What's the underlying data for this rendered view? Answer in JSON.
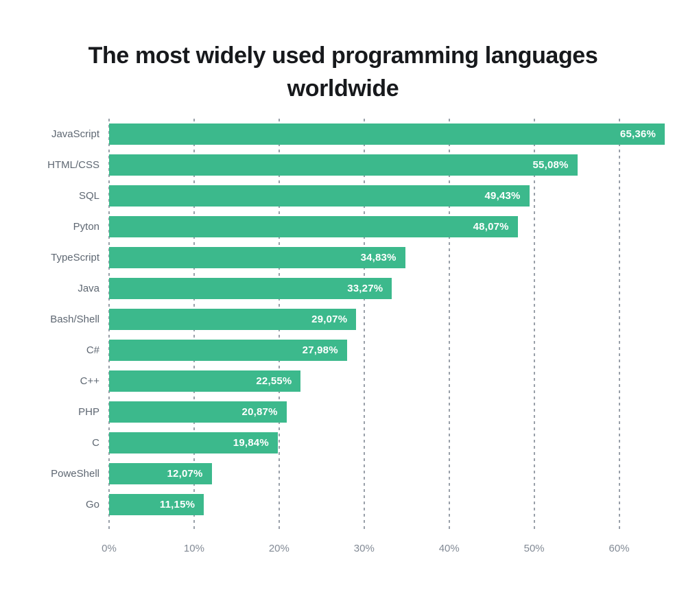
{
  "title": "The most widely used programming languages worldwide",
  "chart_data": {
    "type": "bar",
    "orientation": "horizontal",
    "title": "The most widely used programming languages worldwide",
    "categories": [
      "JavaScript",
      "HTML/CSS",
      "SQL",
      "Pyton",
      "TypeScript",
      "Java",
      "Bash/Shell",
      "C#",
      "C++",
      "PHP",
      "C",
      "PoweShell",
      "Go"
    ],
    "values": [
      65.36,
      55.08,
      49.43,
      48.07,
      34.83,
      33.27,
      29.07,
      27.98,
      22.55,
      20.87,
      19.84,
      12.07,
      11.15
    ],
    "value_labels": [
      "65,36%",
      "55,08%",
      "49,43%",
      "48,07%",
      "34,83%",
      "33,27%",
      "29,07%",
      "27,98%",
      "22,55%",
      "20,87%",
      "19,84%",
      "12,07%",
      "11,15%"
    ],
    "x_ticks": [
      "0%",
      "10%",
      "20%",
      "30%",
      "40%",
      "50%",
      "60%"
    ],
    "x_tick_values": [
      0,
      10,
      20,
      30,
      40,
      50,
      60
    ],
    "xlim": [
      0,
      65.36
    ],
    "xlabel": "",
    "ylabel": "",
    "grid": "dashed vertical gridlines",
    "legend": "none",
    "colors": {
      "bar": "#3cb98c",
      "value-label": "#ffffff",
      "category-label": "#5e6772",
      "tick-label": "#828a95",
      "gridline": "#99a0a9",
      "title": "#17191c",
      "background": "#ffffff"
    }
  }
}
